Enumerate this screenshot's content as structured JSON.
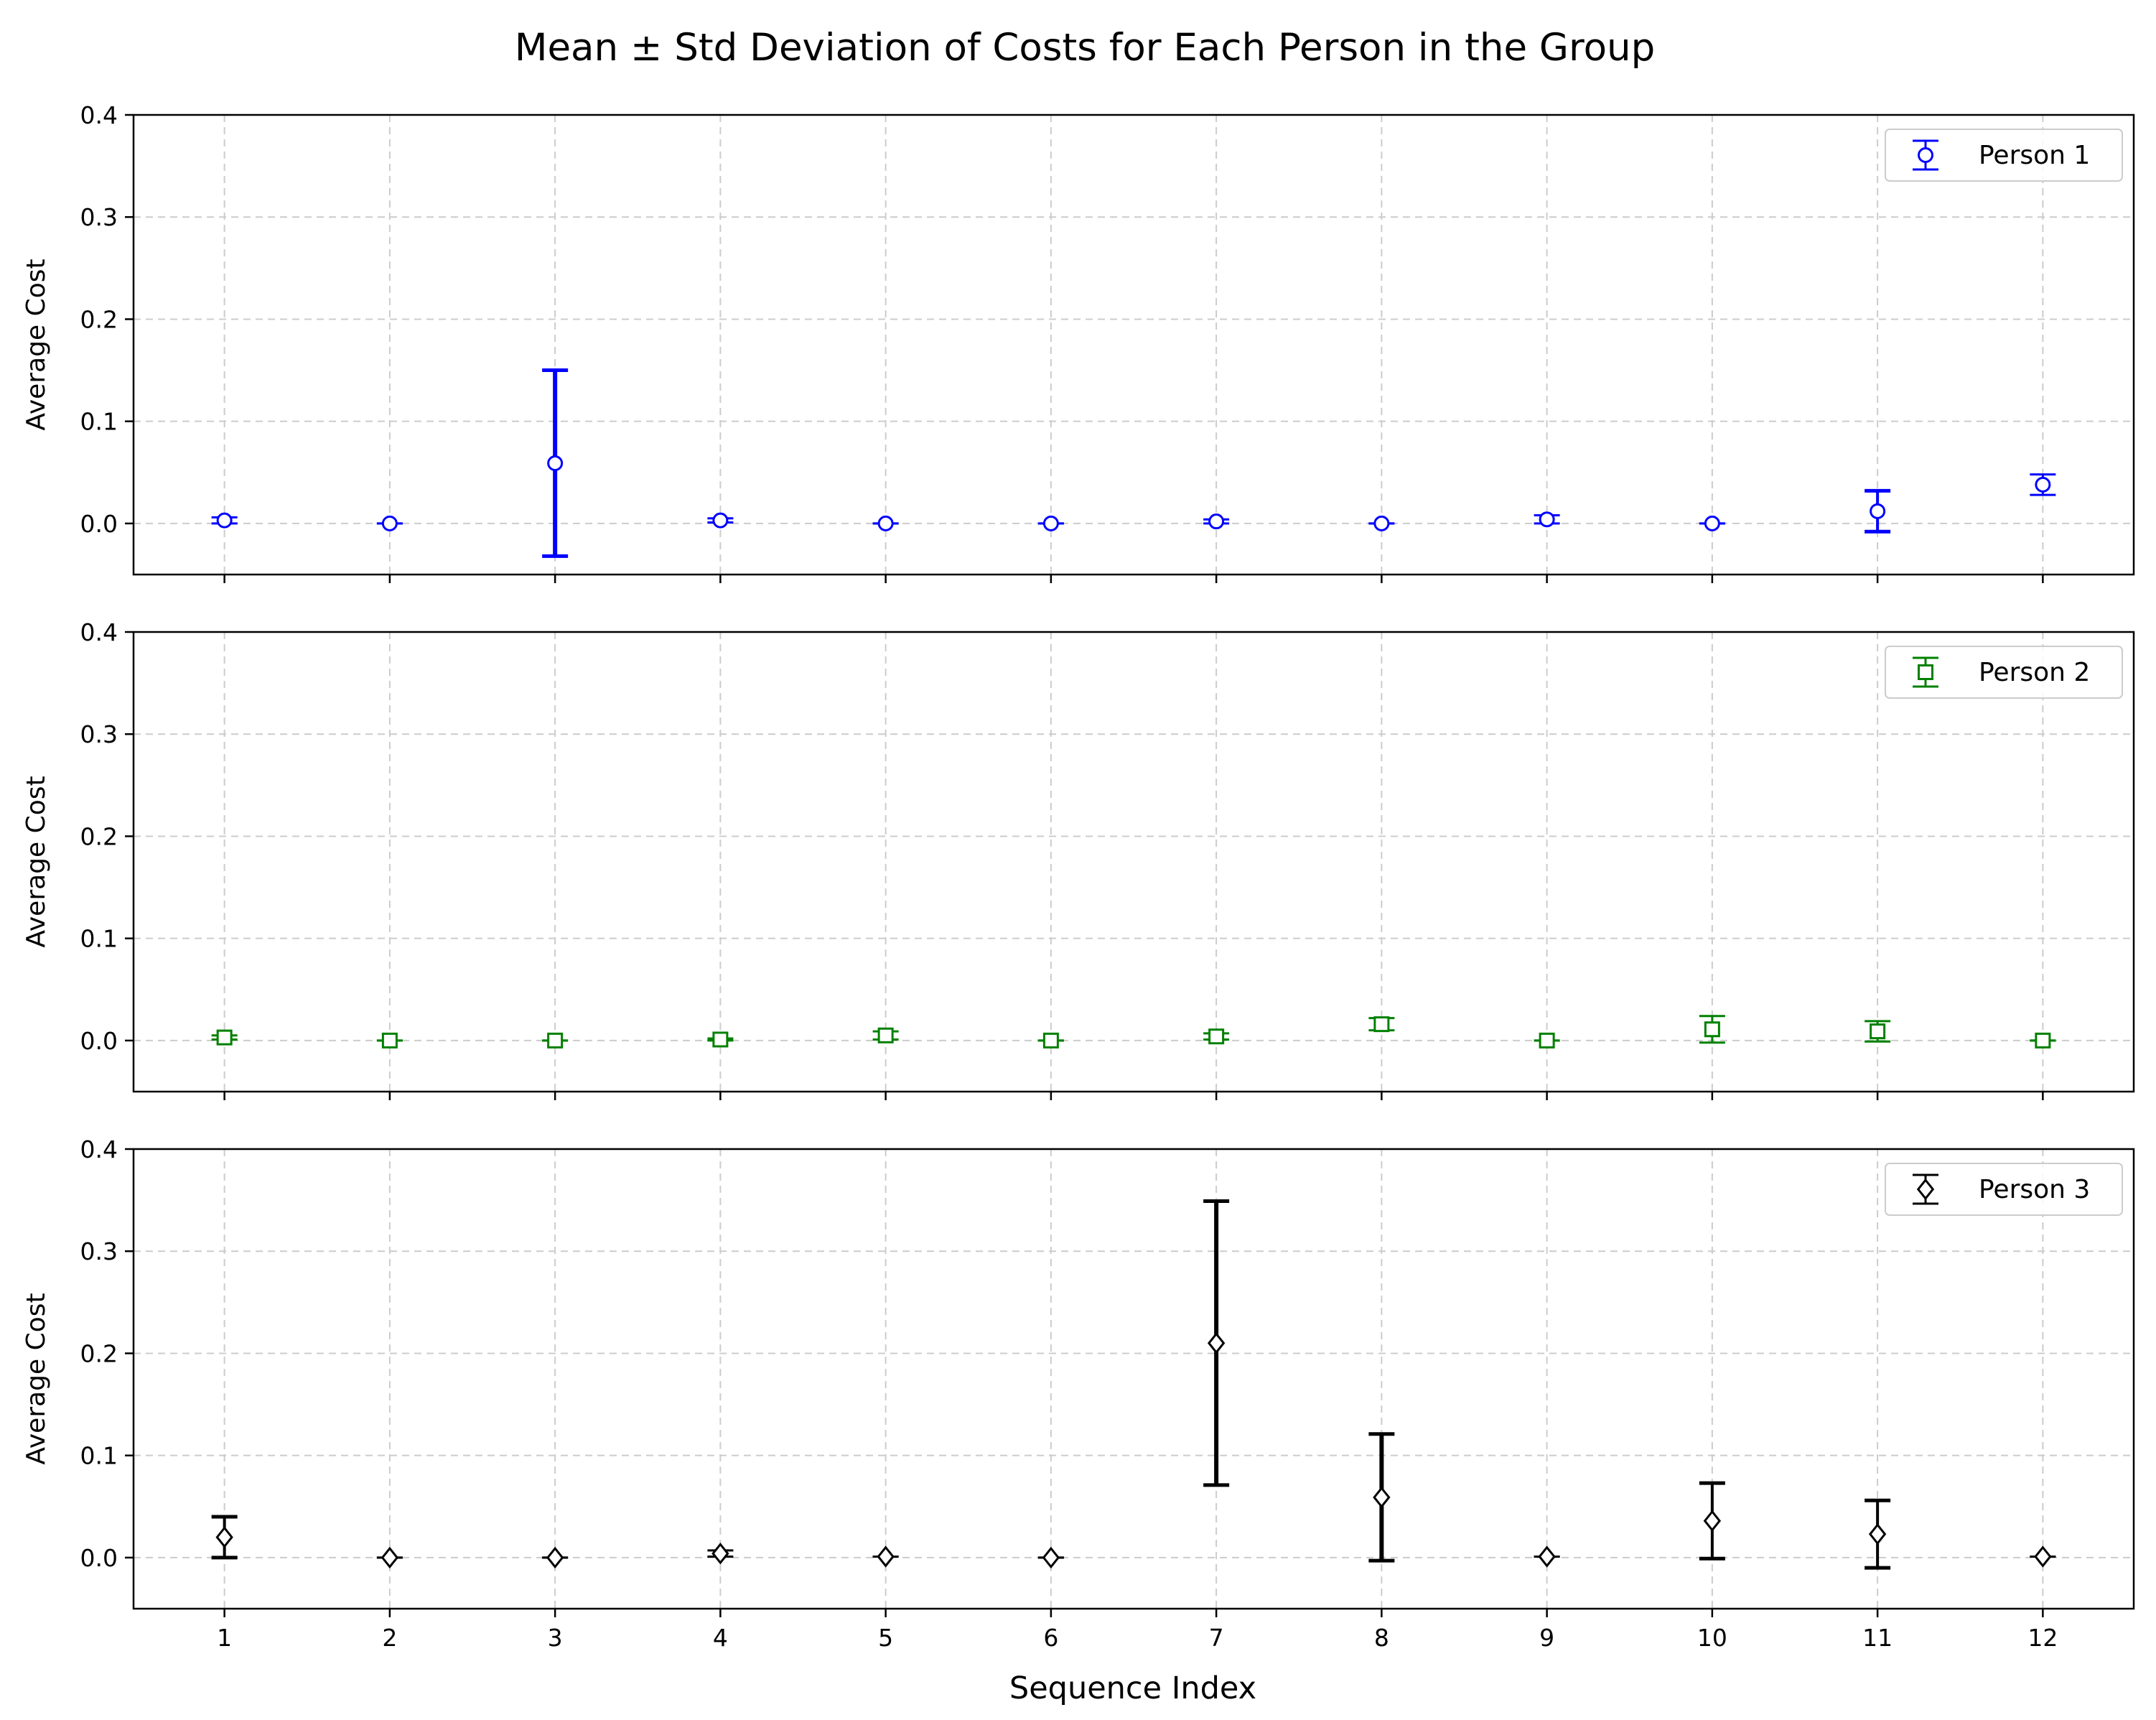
{
  "chart_data": {
    "type": "scatter",
    "title": "Mean ± Std Deviation of Costs for Each Person in the Group",
    "xlabel": "Sequence Index",
    "ylabel": "Average Cost",
    "x": [
      1,
      2,
      3,
      4,
      5,
      6,
      7,
      8,
      9,
      10,
      11,
      12
    ],
    "xticks": [
      "1",
      "2",
      "3",
      "4",
      "5",
      "6",
      "7",
      "8",
      "9",
      "10",
      "11",
      "12"
    ],
    "ylim": [
      -0.05,
      0.4
    ],
    "yticks": [
      "0.0",
      "0.1",
      "0.2",
      "0.3",
      "0.4"
    ],
    "grid": true,
    "legend_position": "top-right",
    "series": [
      {
        "name": "Person 1",
        "color": "#0000ff",
        "marker": "circle",
        "means": [
          0.003,
          0.0,
          0.059,
          0.003,
          0.0,
          0.0,
          0.002,
          0.0,
          0.004,
          0.0,
          0.012,
          0.038
        ],
        "stds": [
          0.003,
          0.0,
          0.091,
          0.002,
          0.0,
          0.0,
          0.002,
          0.0,
          0.004,
          0.0,
          0.02,
          0.01
        ]
      },
      {
        "name": "Person 2",
        "color": "#008000",
        "marker": "square",
        "means": [
          0.003,
          0.0,
          0.0,
          0.001,
          0.005,
          0.0,
          0.004,
          0.016,
          0.0,
          0.011,
          0.009,
          0.0
        ],
        "stds": [
          0.002,
          0.0,
          0.0,
          0.001,
          0.004,
          0.0,
          0.003,
          0.006,
          0.0,
          0.013,
          0.01,
          0.0
        ]
      },
      {
        "name": "Person 3",
        "color": "#000000",
        "marker": "diamond",
        "means": [
          0.02,
          0.0,
          0.0,
          0.004,
          0.001,
          0.0,
          0.21,
          0.059,
          0.001,
          0.036,
          0.023,
          0.001
        ],
        "stds": [
          0.02,
          0.0,
          0.0,
          0.003,
          0.0,
          0.0,
          0.139,
          0.062,
          0.0,
          0.037,
          0.033,
          0.0
        ]
      }
    ]
  }
}
